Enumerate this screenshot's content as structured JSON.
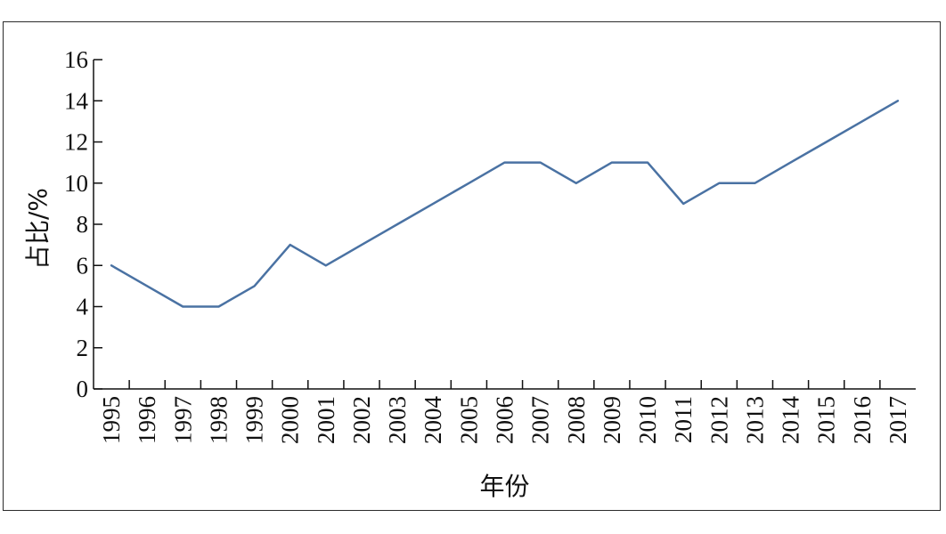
{
  "chart_data": {
    "type": "line",
    "title": "",
    "xlabel": "年份",
    "ylabel": "占比/%",
    "x": [
      "1995",
      "1996",
      "1997",
      "1998",
      "1999",
      "2000",
      "2001",
      "2002",
      "2003",
      "2004",
      "2005",
      "2006",
      "2007",
      "2008",
      "2009",
      "2010",
      "2011",
      "2012",
      "2013",
      "2014",
      "2015",
      "2016",
      "2017"
    ],
    "series": [
      {
        "values": [
          6,
          5,
          4,
          4,
          5,
          7,
          6,
          7,
          8,
          9,
          10,
          11,
          11,
          10,
          11,
          11,
          9,
          10,
          10,
          11,
          12,
          13,
          14
        ],
        "color": "#4a72a3"
      }
    ],
    "ylim": [
      0,
      16
    ],
    "yticks": [
      "0",
      "2",
      "4",
      "6",
      "8",
      "10",
      "12",
      "14",
      "16"
    ],
    "grid": false,
    "legend": "none"
  }
}
